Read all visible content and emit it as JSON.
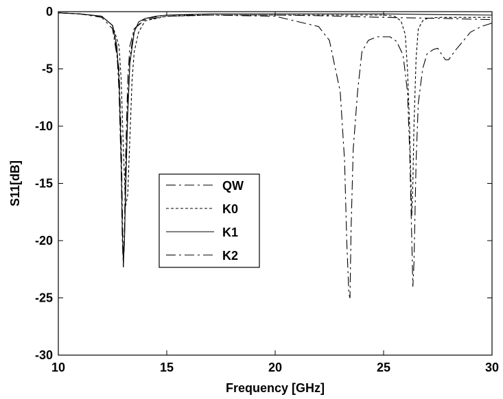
{
  "chart_data": {
    "type": "line",
    "title": "",
    "xlabel": "Frequency [GHz]",
    "ylabel": "S11[dB]",
    "xlim": [
      10,
      30
    ],
    "ylim": [
      -30,
      0
    ],
    "xticks": [
      10,
      15,
      20,
      25,
      30
    ],
    "yticks": [
      0,
      -5,
      -10,
      -15,
      -20,
      -25,
      -30
    ],
    "grid": false,
    "legend_position": "center-left",
    "series": [
      {
        "name": "QW",
        "dash": "long-dash-dot",
        "x": [
          10,
          11,
          12,
          12.5,
          12.8,
          12.9,
          12.95,
          13,
          13.05,
          13.1,
          13.2,
          13.3,
          13.5,
          14,
          15,
          17,
          20,
          22,
          22.5,
          23,
          23.2,
          23.3,
          23.4,
          23.45,
          23.5,
          23.6,
          23.8,
          24,
          24.3,
          24.7,
          25,
          25.3,
          25.6,
          25.9,
          26.1,
          26.2,
          26.3,
          26.35,
          26.4,
          26.5,
          26.6,
          26.8,
          27,
          27.3,
          27.5,
          27.7,
          27.85,
          28,
          28.3,
          28.7,
          29,
          29.5,
          30
        ],
        "y": [
          -0.1,
          -0.2,
          -0.5,
          -1.5,
          -5,
          -11,
          -17,
          -22.3,
          -19,
          -13,
          -6,
          -3,
          -1.5,
          -0.7,
          -0.4,
          -0.3,
          -0.4,
          -1.3,
          -2.5,
          -7,
          -13,
          -20,
          -24.7,
          -25,
          -19,
          -12,
          -7,
          -3.5,
          -2.5,
          -2.2,
          -2.2,
          -2.2,
          -2.6,
          -3.8,
          -7,
          -12,
          -20,
          -24,
          -22,
          -13,
          -8,
          -5,
          -3.7,
          -3.3,
          -3.2,
          -3.8,
          -4.2,
          -4.2,
          -3.4,
          -2.5,
          -1.8,
          -1.3,
          -1.0
        ]
      },
      {
        "name": "K0",
        "dash": "short-dash",
        "x": [
          10,
          11,
          12,
          12.5,
          12.8,
          12.9,
          13,
          13.1,
          13.2,
          13.3,
          13.4,
          13.5,
          13.7,
          14,
          15,
          17,
          20,
          21,
          22,
          24,
          25,
          25.5,
          25.8,
          26,
          26.1,
          26.2,
          26.25,
          26.3,
          26.35,
          26.4,
          26.5,
          26.6,
          26.8,
          27,
          27.5,
          28,
          29,
          30
        ],
        "y": [
          -0.1,
          -0.2,
          -0.4,
          -1.2,
          -3,
          -6,
          -12,
          -17,
          -16,
          -11,
          -6,
          -3.5,
          -1.8,
          -0.8,
          -0.4,
          -0.3,
          -0.3,
          -0.3,
          -0.3,
          -0.3,
          -0.3,
          -0.4,
          -0.8,
          -2,
          -5,
          -10,
          -14,
          -17.8,
          -15,
          -10,
          -4,
          -1.5,
          -0.8,
          -0.6,
          -0.5,
          -0.5,
          -0.5,
          -0.5
        ]
      },
      {
        "name": "K1",
        "dash": "solid",
        "x": [
          10,
          11,
          12,
          12.5,
          12.7,
          12.8,
          12.9,
          12.95,
          13,
          13.05,
          13.1,
          13.2,
          13.3,
          13.5,
          13.7,
          14,
          14.5,
          15,
          17,
          20,
          25,
          30
        ],
        "y": [
          -0.1,
          -0.2,
          -0.4,
          -1.2,
          -3,
          -6,
          -13,
          -19,
          -22,
          -20,
          -16,
          -9,
          -4.5,
          -1.8,
          -0.9,
          -0.6,
          -0.4,
          -0.3,
          -0.2,
          -0.2,
          -0.2,
          -0.3
        ]
      },
      {
        "name": "K2",
        "dash": "long-dash-dot",
        "x": [
          10,
          11,
          12,
          12.5,
          12.7,
          12.8,
          12.9,
          12.95,
          13,
          13.05,
          13.1,
          13.2,
          13.3,
          13.5,
          14,
          15,
          17,
          20,
          22,
          25,
          28,
          30
        ],
        "y": [
          -0.1,
          -0.2,
          -0.4,
          -1.2,
          -3.5,
          -7,
          -14,
          -20,
          -22.3,
          -20,
          -15,
          -8,
          -4,
          -1.5,
          -0.6,
          -0.3,
          -0.3,
          -0.3,
          -0.35,
          -0.5,
          -0.6,
          -0.7
        ]
      }
    ]
  }
}
